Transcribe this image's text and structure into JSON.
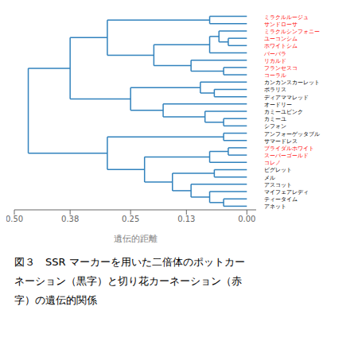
{
  "chart_data": {
    "type": "dendrogram",
    "xlabel": "遺伝的距離",
    "categories": [
      "アネット",
      "ティータイム",
      "マイフェアレディ",
      "アスコット",
      "メル",
      "ピグレット",
      "コレノ",
      "スーパーゴールド",
      "ブライダルホワイト",
      "サマードレス",
      "アンフォーゲッタブル",
      "シフォン",
      "カミーユ",
      "カミーユピンク",
      "オードリー",
      "ディアママレッド",
      "ポラリス",
      "カンカンスカーレット",
      "コーラル",
      "フランセスコ",
      "リカルド",
      "バーバラ",
      "ホワイトシム",
      "ユーコンシム",
      "ミラクルシンフォニー",
      "サンドローサ",
      "ミラクルルージュ"
    ],
    "colors": [
      "black",
      "black",
      "black",
      "black",
      "black",
      "black",
      "red",
      "red",
      "red",
      "black",
      "black",
      "black",
      "black",
      "black",
      "black",
      "black",
      "black",
      "black",
      "red",
      "red",
      "red",
      "red",
      "red",
      "red",
      "red",
      "red",
      "red"
    ],
    "tree": {
      "height": 0.47,
      "children": [
        {
          "height": 0.3,
          "children": [
            {
              "height": 0.22,
              "children": [
                {
                  "height": 0.16,
                  "children": [
                    {
                      "height": 0.12,
                      "children": [
                        {
                          "height": 0.08,
                          "children": [
                            {
                              "height": 0.05,
                              "children": [
                                0,
                                1
                              ]
                            },
                            2
                          ]
                        },
                        3
                      ]
                    },
                    {
                      "height": 0.07,
                      "children": [
                        4,
                        5
                      ]
                    }
                  ]
                },
                {
                  "height": 0.08,
                  "children": [
                    6,
                    {
                      "height": 0.04,
                      "children": [
                        7,
                        8
                      ]
                    }
                  ]
                }
              ]
            },
            {
              "height": 0.05,
              "children": [
                9,
                10
              ]
            }
          ]
        },
        {
          "height": 0.38,
          "children": [
            {
              "height": 0.25,
              "children": [
                {
                  "height": 0.18,
                  "children": [
                    {
                      "height": 0.09,
                      "children": [
                        {
                          "height": 0.05,
                          "children": [
                            11,
                            12
                          ]
                        },
                        13
                      ]
                    },
                    14
                  ]
                },
                {
                  "height": 0.1,
                  "children": [
                    {
                      "height": 0.07,
                      "children": [
                        15,
                        16
                      ]
                    },
                    17
                  ]
                }
              ]
            },
            {
              "height": 0.3,
              "children": [
                {
                  "height": 0.2,
                  "children": [
                    {
                      "height": 0.12,
                      "children": [
                        {
                          "height": 0.05,
                          "children": [
                            18,
                            19
                          ]
                        },
                        20
                      ]
                    },
                    {
                      "height": 0.08,
                      "children": [
                        21,
                        {
                          "height": 0.06,
                          "children": [
                            {
                              "height": 0.04,
                              "children": [
                                22,
                                23
                              ]
                            },
                            24
                          ]
                        }
                      ]
                    }
                  ]
                },
                {
                  "height": 0.08,
                  "children": [
                    25,
                    26
                  ]
                }
              ]
            }
          ]
        }
      ]
    },
    "xlim": [
      0.5,
      -0.02
    ],
    "xticks": [
      {
        "value": 0.5,
        "label": "0.50"
      },
      0.38,
      0.25,
      0.13,
      {
        "value": 0,
        "label": "0.00"
      }
    ],
    "tick_labels": "x",
    "annotations": [
      "図３　SSR マーカーを用いた二倍体のポットカー",
      "ネーション（黒字）と切り花カーネーション（赤",
      "字）の遺伝的関係"
    ]
  }
}
